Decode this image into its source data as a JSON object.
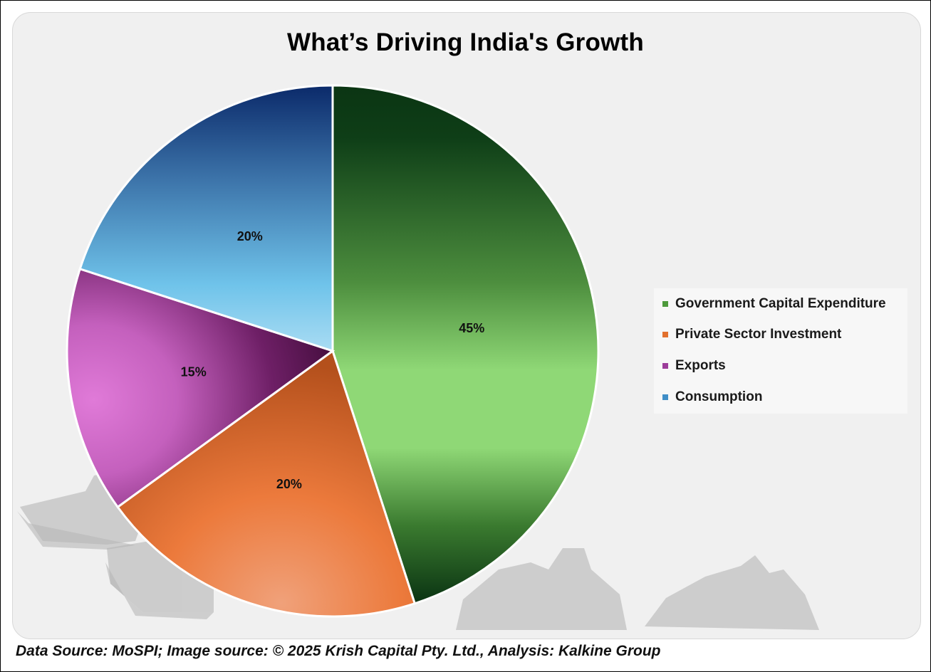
{
  "chart_data": {
    "type": "pie",
    "title": "What’s Driving India's Growth",
    "categories": [
      "Government Capital Expenditure",
      "Private Sector Investment",
      "Exports",
      "Consumption"
    ],
    "values": [
      45,
      20,
      15,
      20
    ],
    "labels": [
      "45%",
      "20%",
      "15%",
      "20%"
    ],
    "colors": [
      "#4e9a3c",
      "#e2712e",
      "#9c3d9a",
      "#3f8ec7"
    ],
    "legend_position": "right"
  },
  "footer": {
    "source_text": "Data Source: MoSPI; Image source: © 2025 Krish Capital Pty. Ltd., Analysis: Kalkine Group"
  }
}
